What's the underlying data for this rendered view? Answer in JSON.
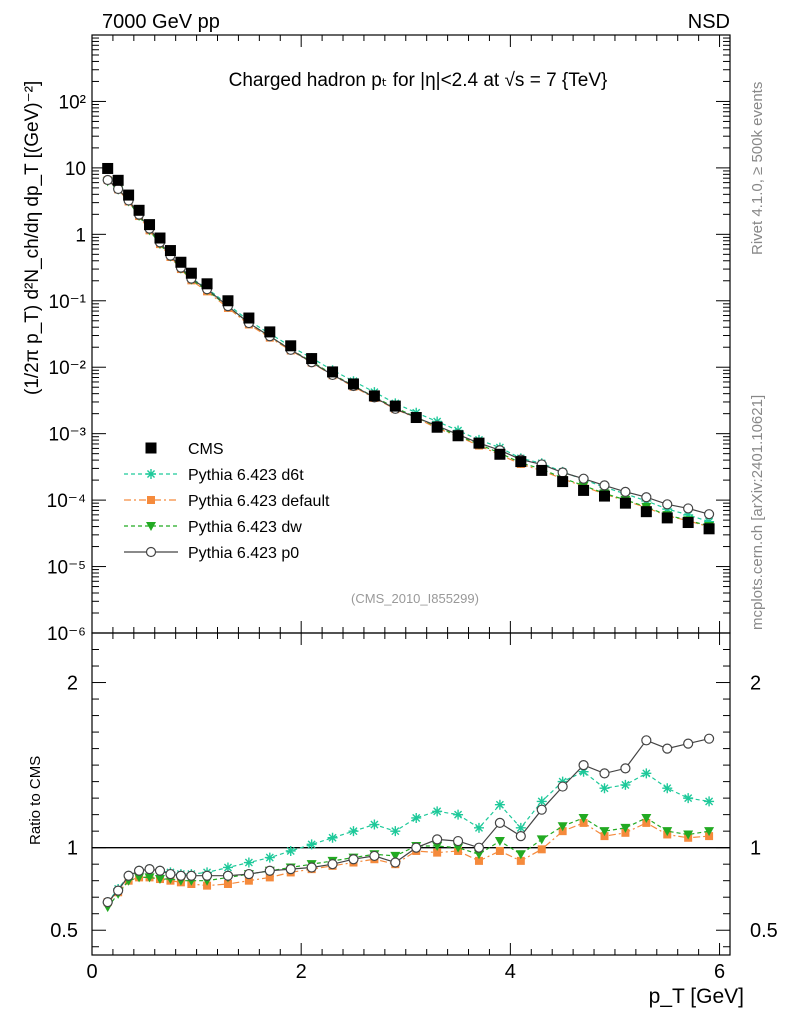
{
  "header": {
    "left": "7000 GeV pp",
    "right": "NSD"
  },
  "side": {
    "top": "Rivet 4.1.0, ≥ 500k events",
    "bottom": "mcplots.cern.ch [arXiv:2401.10621]"
  },
  "chart_data": {
    "type": "scatter",
    "title": "Charged hadron pₜ for |η|<2.4 at √s = 7 {TeV}",
    "annotation": "(CMS_2010_I855299)",
    "xlabel": "p_T [GeV]",
    "ylabel": "(1/2π p_T) d²N_ch/dη dp_T [(GeV)⁻²]",
    "ratio_ylabel": "Ratio to CMS",
    "xlim": [
      0,
      6.1
    ],
    "ylim": [
      1e-06,
      1000
    ],
    "ratio_ylim": [
      0.35,
      2.3
    ],
    "x_ticks": [
      "0",
      "2",
      "4",
      "6"
    ],
    "y_ticks": [
      "10⁻⁶",
      "10⁻⁵",
      "10⁻⁴",
      "10⁻³",
      "10⁻²",
      "10⁻¹",
      "1",
      "10",
      "10²"
    ],
    "ratio_ticks": [
      "0.5",
      "1",
      "2"
    ],
    "x": [
      0.15,
      0.25,
      0.35,
      0.45,
      0.55,
      0.65,
      0.75,
      0.85,
      0.95,
      1.1,
      1.3,
      1.5,
      1.7,
      1.9,
      2.1,
      2.3,
      2.5,
      2.7,
      2.9,
      3.1,
      3.3,
      3.5,
      3.7,
      3.9,
      4.1,
      4.3,
      4.5,
      4.7,
      4.9,
      5.1,
      5.3,
      5.5,
      5.7,
      5.9
    ],
    "data": {
      "name": "CMS",
      "values": [
        9.8,
        6.5,
        3.9,
        2.3,
        1.4,
        0.88,
        0.57,
        0.38,
        0.26,
        0.18,
        0.1,
        0.055,
        0.034,
        0.021,
        0.0135,
        0.0085,
        0.0056,
        0.0037,
        0.0026,
        0.00175,
        0.00125,
        0.00093,
        0.00072,
        0.00049,
        0.00038,
        0.00028,
        0.00019,
        0.00014,
        0.000115,
        9e-05,
        6.7e-05,
        5.4e-05,
        4.6e-05,
        3.7e-05
      ]
    },
    "series": [
      {
        "name": "Pythia 6.423 d6t",
        "color": "#1ec99a",
        "dash": "4,3",
        "marker": "star",
        "ratio": [
          0.67,
          0.75,
          0.83,
          0.86,
          0.87,
          0.86,
          0.85,
          0.84,
          0.84,
          0.85,
          0.88,
          0.91,
          0.94,
          0.98,
          1.02,
          1.06,
          1.1,
          1.14,
          1.1,
          1.18,
          1.22,
          1.2,
          1.12,
          1.26,
          1.12,
          1.28,
          1.4,
          1.46,
          1.36,
          1.38,
          1.45,
          1.36,
          1.3,
          1.28
        ]
      },
      {
        "name": "Pythia 6.423 default",
        "color": "#f58a3c",
        "dash": "7,3,2,3",
        "marker": "square",
        "ratio": [
          0.67,
          0.73,
          0.8,
          0.82,
          0.82,
          0.81,
          0.8,
          0.79,
          0.78,
          0.77,
          0.78,
          0.8,
          0.82,
          0.85,
          0.87,
          0.89,
          0.91,
          0.93,
          0.9,
          0.98,
          0.97,
          0.98,
          0.92,
          0.98,
          0.92,
          0.99,
          1.1,
          1.15,
          1.07,
          1.09,
          1.15,
          1.08,
          1.06,
          1.07
        ]
      },
      {
        "name": "Pythia 6.423 dw",
        "color": "#22aa22",
        "dash": "4,3",
        "marker": "tridown",
        "ratio": [
          0.64,
          0.72,
          0.8,
          0.82,
          0.82,
          0.81,
          0.81,
          0.8,
          0.8,
          0.8,
          0.82,
          0.84,
          0.86,
          0.88,
          0.9,
          0.92,
          0.94,
          0.96,
          0.95,
          1.01,
          1.01,
          1.0,
          0.96,
          1.04,
          0.96,
          1.05,
          1.13,
          1.18,
          1.1,
          1.12,
          1.18,
          1.1,
          1.08,
          1.1
        ]
      },
      {
        "name": "Pythia 6.423 p0",
        "color": "#444444",
        "dash": "",
        "marker": "circle",
        "ratio": [
          0.67,
          0.74,
          0.83,
          0.86,
          0.87,
          0.86,
          0.84,
          0.83,
          0.83,
          0.83,
          0.83,
          0.84,
          0.86,
          0.87,
          0.88,
          0.9,
          0.93,
          0.95,
          0.91,
          1.0,
          1.05,
          1.04,
          1.0,
          1.15,
          1.07,
          1.23,
          1.37,
          1.5,
          1.45,
          1.48,
          1.65,
          1.6,
          1.63,
          1.66
        ]
      }
    ],
    "legend_position": "bottom-left"
  }
}
